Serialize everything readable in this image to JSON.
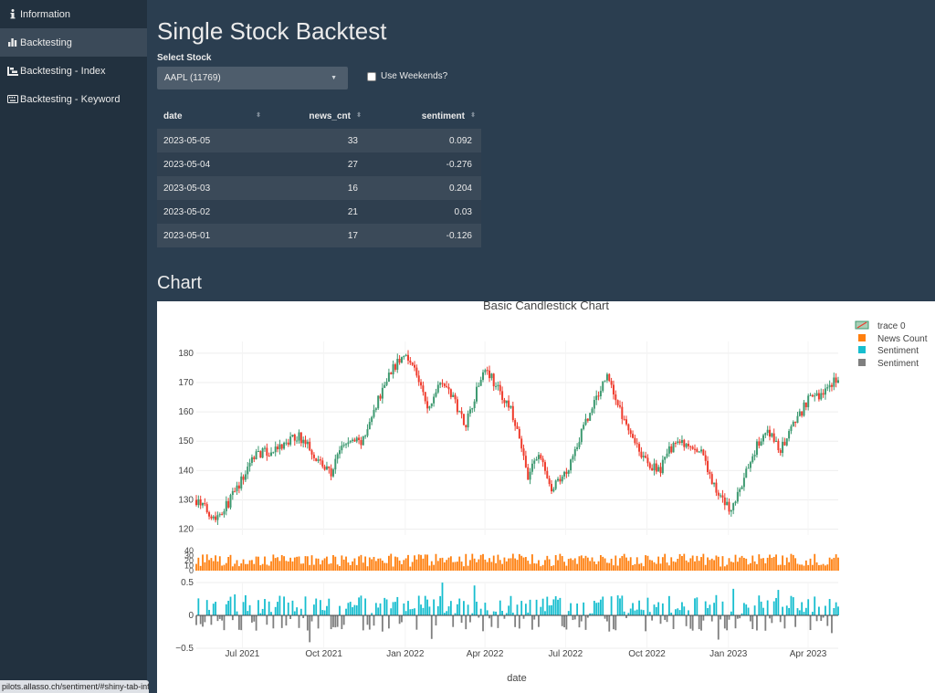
{
  "sidebar": {
    "items": [
      {
        "icon": "info-icon",
        "label": "Information",
        "active": false
      },
      {
        "icon": "bar-chart-icon",
        "label": "Backtesting",
        "active": true
      },
      {
        "icon": "index-icon",
        "label": "Backtesting - Index",
        "active": false
      },
      {
        "icon": "keyboard-icon",
        "label": "Backtesting - Keyword",
        "active": false
      }
    ]
  },
  "status_url": "pilots.allasso.ch/sentiment/#shiny-tab-info",
  "main": {
    "title": "Single Stock Backtest",
    "select_label": "Select Stock",
    "select_value": "AAPL (11769)",
    "weekends_label": "Use Weekends?",
    "weekends_checked": false,
    "table": {
      "columns": [
        "date",
        "news_cnt",
        "sentiment"
      ],
      "rows": [
        [
          "2023-05-05",
          "33",
          "0.092"
        ],
        [
          "2023-05-04",
          "27",
          "-0.276"
        ],
        [
          "2023-05-03",
          "16",
          "0.204"
        ],
        [
          "2023-05-02",
          "21",
          "0.03"
        ],
        [
          "2023-05-01",
          "17",
          "-0.126"
        ]
      ]
    },
    "chart_heading": "Chart"
  },
  "chart_data": {
    "type": "candlestick",
    "title": "Basic Candlestick Chart",
    "xlabel": "date",
    "x_ticks": [
      "Jul 2021",
      "Oct 2021",
      "Jan 2022",
      "Apr 2022",
      "Jul 2022",
      "Oct 2022",
      "Jan 2023",
      "Apr 2023"
    ],
    "x_range": [
      "2021-05-10",
      "2023-05-05"
    ],
    "price": {
      "ylim": [
        118,
        184
      ],
      "y_ticks": [
        120,
        130,
        140,
        150,
        160,
        170,
        180
      ],
      "increasing_color": "#3d9970",
      "decreasing_color": "#ef3b2c",
      "close_path": [
        [
          "2021-05-10",
          130
        ],
        [
          "2021-05-20",
          127
        ],
        [
          "2021-06-01",
          124
        ],
        [
          "2021-06-15",
          129
        ],
        [
          "2021-07-01",
          137
        ],
        [
          "2021-07-15",
          146
        ],
        [
          "2021-08-01",
          146
        ],
        [
          "2021-08-15",
          148
        ],
        [
          "2021-09-01",
          152
        ],
        [
          "2021-09-15",
          148
        ],
        [
          "2021-10-01",
          141
        ],
        [
          "2021-10-10",
          139
        ],
        [
          "2021-10-20",
          148
        ],
        [
          "2021-11-01",
          150
        ],
        [
          "2021-11-15",
          150
        ],
        [
          "2021-12-01",
          164
        ],
        [
          "2021-12-15",
          174
        ],
        [
          "2022-01-03",
          180
        ],
        [
          "2022-01-15",
          172
        ],
        [
          "2022-01-27",
          160
        ],
        [
          "2022-02-10",
          172
        ],
        [
          "2022-02-25",
          164
        ],
        [
          "2022-03-10",
          156
        ],
        [
          "2022-03-20",
          165
        ],
        [
          "2022-04-01",
          176
        ],
        [
          "2022-04-15",
          168
        ],
        [
          "2022-05-01",
          160
        ],
        [
          "2022-05-10",
          150
        ],
        [
          "2022-05-20",
          138
        ],
        [
          "2022-06-01",
          146
        ],
        [
          "2022-06-15",
          133
        ],
        [
          "2022-07-01",
          139
        ],
        [
          "2022-07-15",
          150
        ],
        [
          "2022-08-01",
          162
        ],
        [
          "2022-08-17",
          173
        ],
        [
          "2022-09-01",
          160
        ],
        [
          "2022-09-15",
          152
        ],
        [
          "2022-10-01",
          142
        ],
        [
          "2022-10-15",
          140
        ],
        [
          "2022-11-01",
          150
        ],
        [
          "2022-11-15",
          148
        ],
        [
          "2022-12-01",
          146
        ],
        [
          "2022-12-15",
          135
        ],
        [
          "2023-01-03",
          126
        ],
        [
          "2023-01-15",
          134
        ],
        [
          "2023-02-01",
          148
        ],
        [
          "2023-02-15",
          153
        ],
        [
          "2023-03-01",
          147
        ],
        [
          "2023-03-15",
          155
        ],
        [
          "2023-04-01",
          164
        ],
        [
          "2023-04-15",
          166
        ],
        [
          "2023-05-05",
          172
        ]
      ]
    },
    "news_count": {
      "ylim": [
        0,
        40
      ],
      "y_ticks": [
        0,
        10,
        20,
        30,
        40
      ],
      "color": "#ff7f0e",
      "name": "News Count"
    },
    "sentiment": {
      "ylim": [
        -0.5,
        0.5
      ],
      "y_ticks": [
        -0.5,
        0,
        0.5
      ],
      "pos_color": "#17becf",
      "neg_color": "#7f7f7f",
      "names": [
        "Sentiment",
        "Sentiment"
      ]
    },
    "legend": {
      "placement": "top-right",
      "entries": [
        "trace 0",
        "News Count",
        "Sentiment",
        "Sentiment"
      ]
    }
  }
}
